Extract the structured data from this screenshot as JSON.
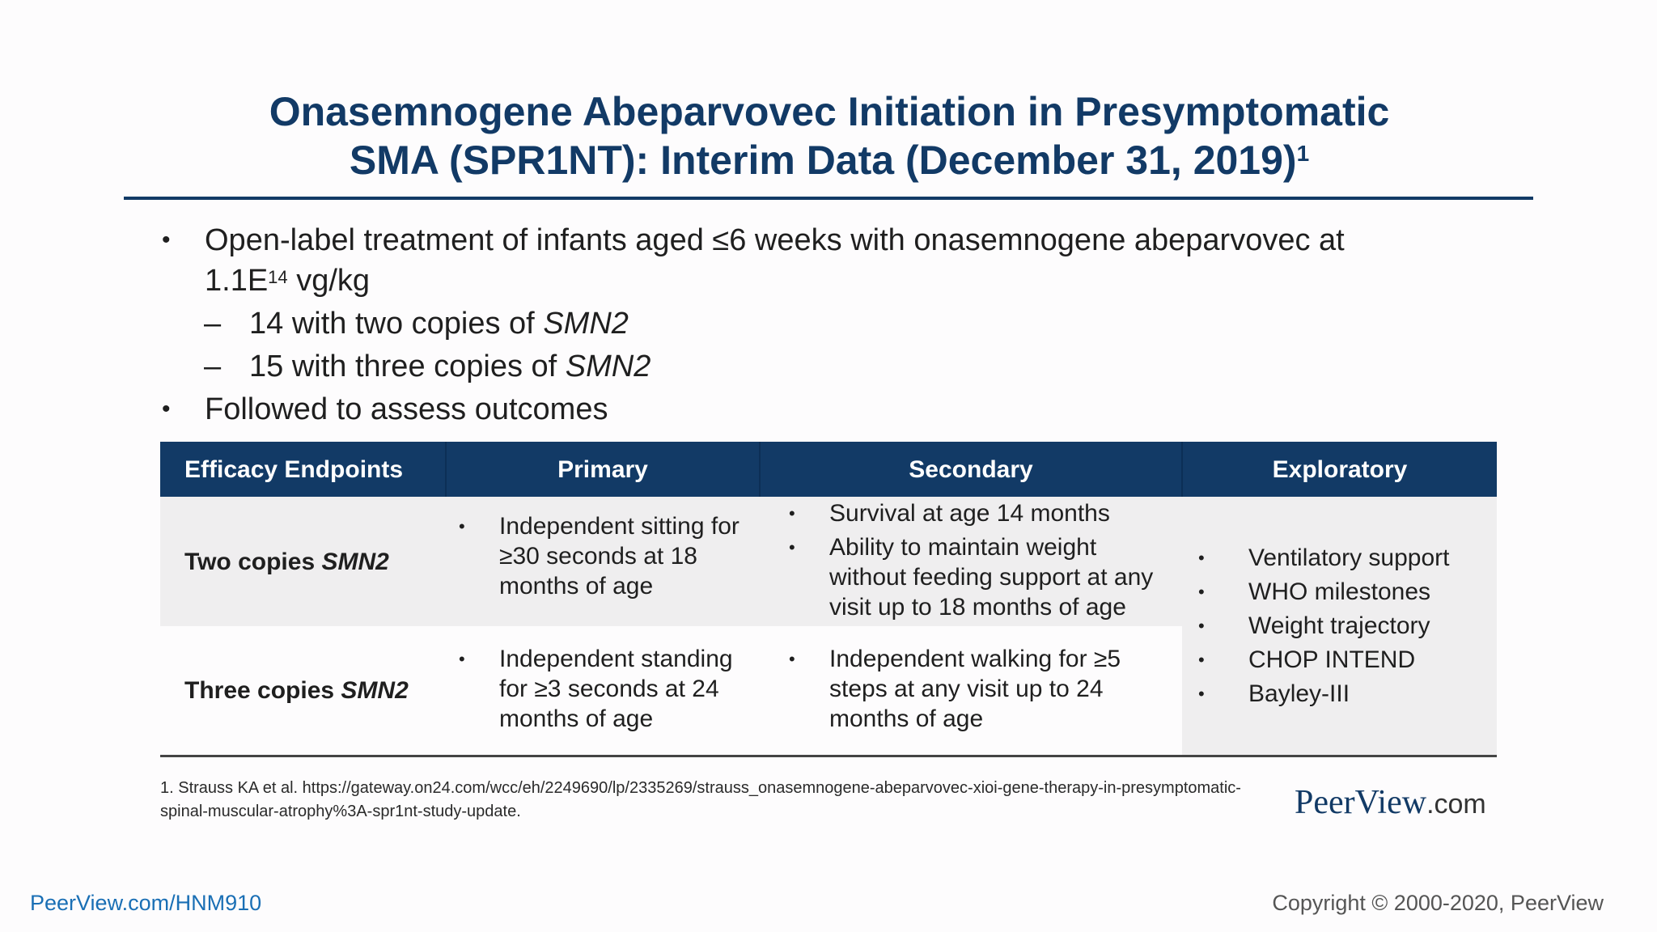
{
  "slide": {
    "title_line1": "Onasemnogene Abeparvovec Initiation in Presymptomatic",
    "title_line2": "SMA (SPR1NT): Interim Data (December 31, 2019)",
    "title_ref": "1"
  },
  "bullets": {
    "main1_text": "Open-label treatment of infants aged ≤6 weeks with onasemnogene abeparvovec at 1.1E",
    "main1_sup": "14",
    "main1_unit": " vg/kg",
    "sub1_prefix": "14 with two copies of ",
    "sub1_gene": "SMN2",
    "sub2_prefix": "15 with three copies of ",
    "sub2_gene": "SMN2",
    "main2_text": "Followed to assess outcomes"
  },
  "table": {
    "headers": [
      "Efficacy Endpoints",
      "Primary",
      "Secondary",
      "Exploratory"
    ],
    "row1_label_prefix": "Two copies ",
    "row1_label_gene": "SMN2",
    "row1_primary": "Independent sitting for ≥30 seconds at 18 months of age",
    "row1_secondary": [
      "Survival at age 14 months",
      "Ability to maintain weight without feeding support at any visit up to 18 months of age"
    ],
    "row2_label_prefix": "Three copies ",
    "row2_label_gene": "SMN2",
    "row2_primary": "Independent standing for ≥3 seconds at 24 months of age",
    "row2_secondary": "Independent walking for ≥5 steps at any visit up to 24 months of age",
    "exploratory": [
      "Ventilatory support",
      "WHO milestones",
      "Weight trajectory",
      "CHOP INTEND",
      "Bayley-III"
    ]
  },
  "footer": {
    "footnote": "1. Strauss KA et al. https://gateway.on24.com/wcc/eh/2249690/lp/2335269/strauss_onasemnogene-abeparvovec-xioi-gene-therapy-in-presymptomatic-spinal-muscular-atrophy%3A-spr1nt-study-update.",
    "logo_main": "PeerView",
    "logo_suffix": ".com",
    "link": "PeerView.com/HNM910",
    "copyright": "Copyright © 2000-2020, PeerView"
  }
}
